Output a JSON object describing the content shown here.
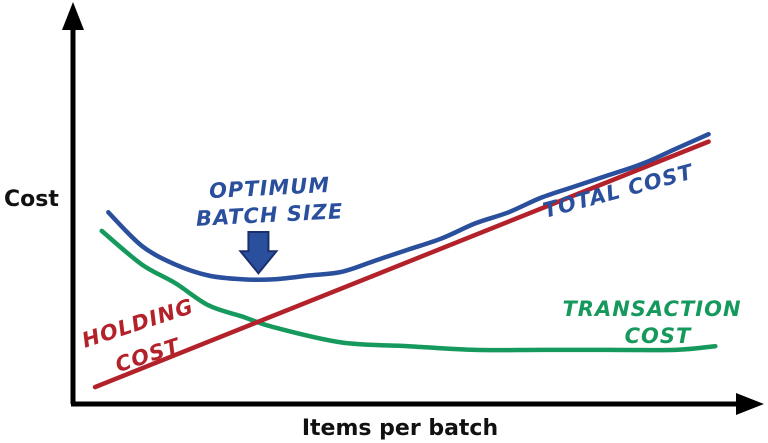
{
  "chart_data": {
    "type": "line",
    "title": "",
    "xlabel": "Items per batch",
    "ylabel": "Cost",
    "xlim": [
      0,
      100
    ],
    "ylim": [
      0,
      100
    ],
    "grid": false,
    "legend": "none",
    "series": [
      {
        "name": "TOTAL COST",
        "color": "#2a4f9c",
        "x": [
          5,
          10,
          15,
          20,
          25,
          30,
          35,
          40,
          45,
          50,
          55,
          60,
          65,
          70,
          75,
          80,
          85,
          90,
          95
        ],
        "y": [
          51,
          42,
          37,
          34,
          33,
          33,
          34,
          35,
          38,
          41,
          44,
          48,
          51,
          55,
          58,
          61,
          64,
          68,
          72
        ]
      },
      {
        "name": "HOLDING COST",
        "color": "#b3222a",
        "x": [
          3,
          95
        ],
        "y": [
          4,
          70
        ]
      },
      {
        "name": "TRANSACTION COST",
        "color": "#16995c",
        "x": [
          4,
          10,
          15,
          20,
          25,
          30,
          40,
          50,
          60,
          70,
          80,
          90,
          96
        ],
        "y": [
          46,
          37,
          32,
          26,
          23,
          20,
          16,
          15,
          14,
          14,
          14,
          14,
          15
        ]
      }
    ],
    "annotations": [
      {
        "text_line1": "OPTIMUM",
        "text_line2": "BATCH SIZE",
        "color": "#2a4f9c",
        "x": 29,
        "y": 33
      }
    ],
    "labels": {
      "total": {
        "text": "TOTAL COST",
        "color": "#2a4f9c"
      },
      "holding": {
        "line1": "HOLDING",
        "line2": "COST",
        "color": "#b3222a"
      },
      "transaction": {
        "line1": "TRANSACTION",
        "line2": "COST",
        "color": "#16995c"
      }
    }
  }
}
